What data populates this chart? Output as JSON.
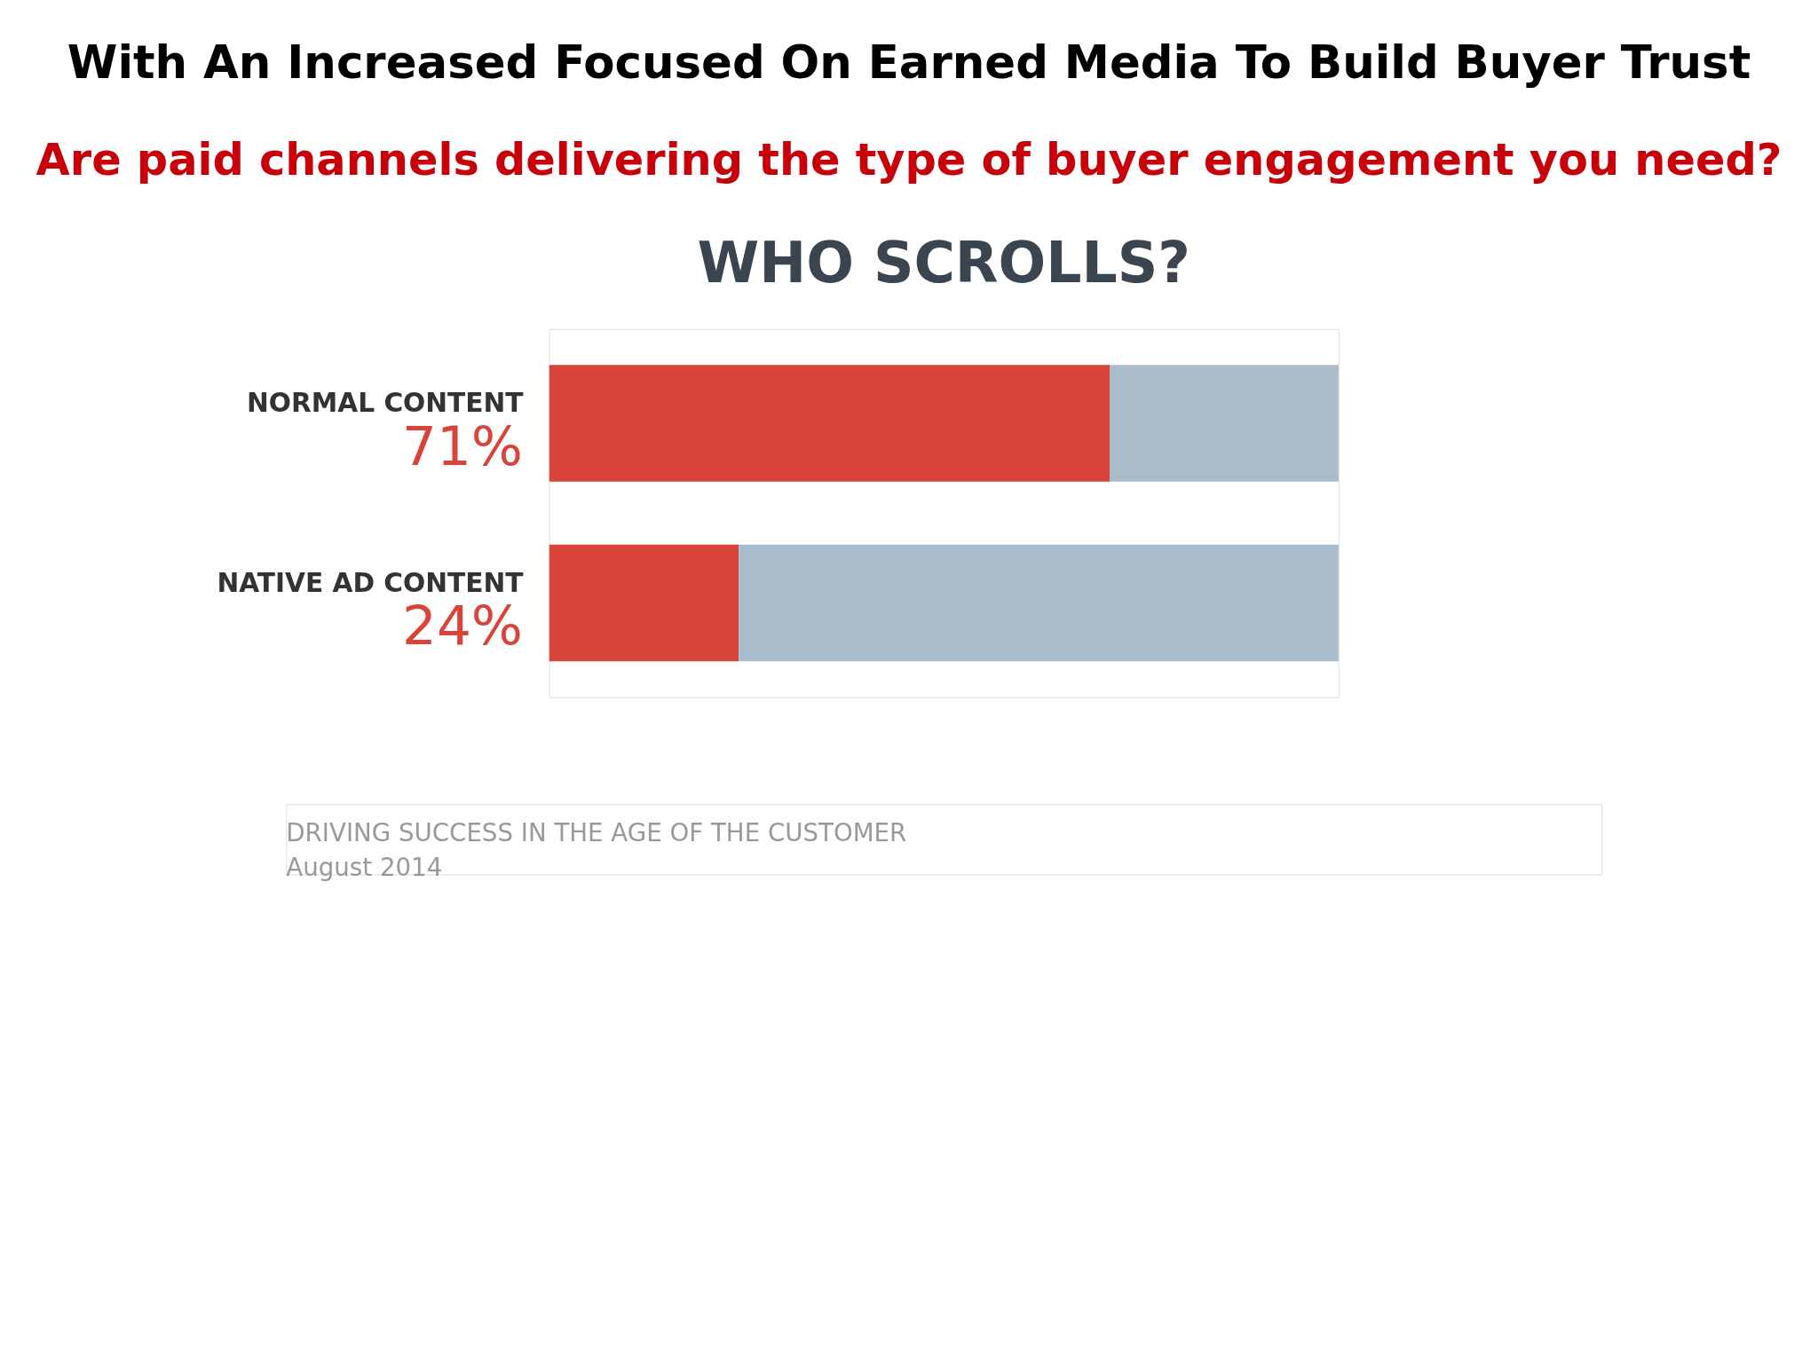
{
  "chart_data": {
    "type": "bar",
    "orientation": "horizontal",
    "stacked": true,
    "title": "With An Increased Focused On Earned Media To Build Buyer Trust",
    "subtitle": "Are paid channels delivering the type of buyer engagement you need?",
    "categories": [
      "NORMAL CONTENT",
      "NATIVE AD CONTENT"
    ],
    "series": [
      {
        "color": "#d9443a",
        "values": [
          71,
          24
        ],
        "value_labels": [
          "71%",
          "24%"
        ]
      },
      {
        "color": "#a9bccb",
        "values": [
          29,
          76
        ]
      }
    ],
    "xlim": [
      0,
      100
    ],
    "tick_labels": "y",
    "annotations": [
      "WHO SCROLLS?",
      "DRIVING SUCCESS IN THE AGE OF THE CUSTOMER",
      "August 2014"
    ]
  }
}
